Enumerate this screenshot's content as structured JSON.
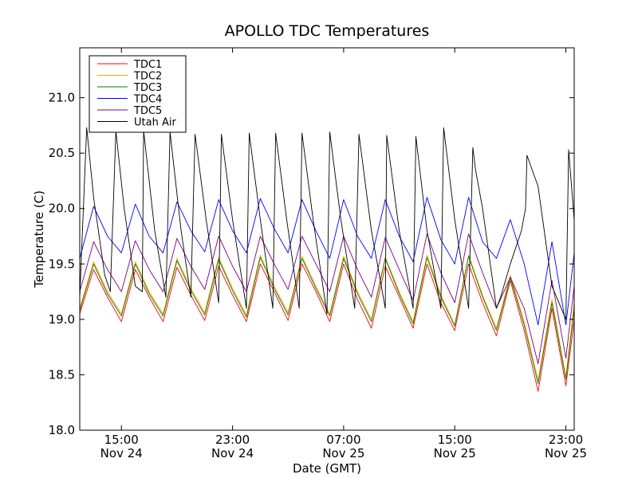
{
  "chart_data": {
    "type": "line",
    "title": "APOLLO TDC Temperatures",
    "xlabel": "Date (GMT)",
    "ylabel": "Temperature (C)",
    "xlim": [
      0,
      35.6
    ],
    "ylim": [
      18.0,
      21.45
    ],
    "yticks": [
      18.0,
      18.5,
      19.0,
      19.5,
      20.0,
      20.5,
      21.0
    ],
    "xticks": [
      {
        "x": 3.0,
        "time": "15:00",
        "date": "Nov 24"
      },
      {
        "x": 11.0,
        "time": "23:00",
        "date": "Nov 24"
      },
      {
        "x": 19.0,
        "time": "07:00",
        "date": "Nov 25"
      },
      {
        "x": 27.0,
        "time": "15:00",
        "date": "Nov 25"
      },
      {
        "x": 35.0,
        "time": "23:00",
        "date": "Nov 25"
      }
    ],
    "legend_position": "top-left",
    "series": [
      {
        "name": "TDC1",
        "color": "#ff0000",
        "points": [
          [
            0,
            19.05
          ],
          [
            1,
            19.45
          ],
          [
            2,
            19.2
          ],
          [
            3,
            18.98
          ],
          [
            4,
            19.45
          ],
          [
            5,
            19.2
          ],
          [
            6,
            18.98
          ],
          [
            7,
            19.47
          ],
          [
            8,
            19.22
          ],
          [
            9,
            18.99
          ],
          [
            10,
            19.48
          ],
          [
            11,
            19.22
          ],
          [
            12,
            18.98
          ],
          [
            13,
            19.5
          ],
          [
            14,
            19.25
          ],
          [
            15,
            18.99
          ],
          [
            16,
            19.5
          ],
          [
            17,
            19.25
          ],
          [
            18,
            18.98
          ],
          [
            19,
            19.5
          ],
          [
            20,
            19.18
          ],
          [
            21,
            18.92
          ],
          [
            22,
            19.48
          ],
          [
            23,
            19.2
          ],
          [
            24,
            18.92
          ],
          [
            25,
            19.5
          ],
          [
            26,
            19.15
          ],
          [
            27,
            18.9
          ],
          [
            28,
            19.5
          ],
          [
            29,
            19.15
          ],
          [
            30,
            18.85
          ],
          [
            31,
            19.35
          ],
          [
            32,
            18.9
          ],
          [
            33,
            18.35
          ],
          [
            34,
            19.1
          ],
          [
            35,
            18.4
          ],
          [
            35.6,
            19.0
          ]
        ]
      },
      {
        "name": "TDC2",
        "color": "#ffa500",
        "points": [
          [
            0,
            19.1
          ],
          [
            1,
            19.52
          ],
          [
            2,
            19.25
          ],
          [
            3,
            19.05
          ],
          [
            4,
            19.52
          ],
          [
            5,
            19.25
          ],
          [
            6,
            19.05
          ],
          [
            7,
            19.55
          ],
          [
            8,
            19.28
          ],
          [
            9,
            19.06
          ],
          [
            10,
            19.56
          ],
          [
            11,
            19.28
          ],
          [
            12,
            19.04
          ],
          [
            13,
            19.58
          ],
          [
            14,
            19.3
          ],
          [
            15,
            19.06
          ],
          [
            16,
            19.57
          ],
          [
            17,
            19.3
          ],
          [
            18,
            19.05
          ],
          [
            19,
            19.57
          ],
          [
            20,
            19.25
          ],
          [
            21,
            19.0
          ],
          [
            22,
            19.56
          ],
          [
            23,
            19.25
          ],
          [
            24,
            18.98
          ],
          [
            25,
            19.58
          ],
          [
            26,
            19.22
          ],
          [
            27,
            18.95
          ],
          [
            28,
            19.58
          ],
          [
            29,
            19.22
          ],
          [
            30,
            18.92
          ],
          [
            31,
            19.4
          ],
          [
            32,
            18.98
          ],
          [
            33,
            18.45
          ],
          [
            34,
            19.18
          ],
          [
            35,
            18.48
          ],
          [
            35.6,
            19.15
          ]
        ]
      },
      {
        "name": "TDC3",
        "color": "#008000",
        "points": [
          [
            0,
            19.08
          ],
          [
            1,
            19.5
          ],
          [
            2,
            19.23
          ],
          [
            3,
            19.03
          ],
          [
            4,
            19.5
          ],
          [
            5,
            19.23
          ],
          [
            6,
            19.03
          ],
          [
            7,
            19.53
          ],
          [
            8,
            19.26
          ],
          [
            9,
            19.04
          ],
          [
            10,
            19.54
          ],
          [
            11,
            19.26
          ],
          [
            12,
            19.02
          ],
          [
            13,
            19.56
          ],
          [
            14,
            19.28
          ],
          [
            15,
            19.04
          ],
          [
            16,
            19.55
          ],
          [
            17,
            19.28
          ],
          [
            18,
            19.03
          ],
          [
            19,
            19.55
          ],
          [
            20,
            19.23
          ],
          [
            21,
            18.98
          ],
          [
            22,
            19.55
          ],
          [
            23,
            19.23
          ],
          [
            24,
            18.96
          ],
          [
            25,
            19.56
          ],
          [
            26,
            19.2
          ],
          [
            27,
            18.94
          ],
          [
            28,
            19.57
          ],
          [
            29,
            19.2
          ],
          [
            30,
            18.9
          ],
          [
            31,
            19.38
          ],
          [
            32,
            18.95
          ],
          [
            33,
            18.42
          ],
          [
            34,
            19.15
          ],
          [
            35,
            18.46
          ],
          [
            35.6,
            19.1
          ]
        ]
      },
      {
        "name": "TDC4",
        "color": "#0000ff",
        "points": [
          [
            0,
            19.55
          ],
          [
            1,
            20.02
          ],
          [
            2,
            19.75
          ],
          [
            3,
            19.6
          ],
          [
            4,
            20.04
          ],
          [
            5,
            19.75
          ],
          [
            6,
            19.6
          ],
          [
            7,
            20.06
          ],
          [
            8,
            19.8
          ],
          [
            9,
            19.61
          ],
          [
            10,
            20.08
          ],
          [
            11,
            19.8
          ],
          [
            12,
            19.6
          ],
          [
            13,
            20.09
          ],
          [
            14,
            19.82
          ],
          [
            15,
            19.6
          ],
          [
            16,
            20.08
          ],
          [
            17,
            19.8
          ],
          [
            18,
            19.55
          ],
          [
            19,
            20.08
          ],
          [
            20,
            19.75
          ],
          [
            21,
            19.55
          ],
          [
            22,
            20.08
          ],
          [
            23,
            19.75
          ],
          [
            24,
            19.52
          ],
          [
            25,
            20.1
          ],
          [
            26,
            19.72
          ],
          [
            27,
            19.5
          ],
          [
            28,
            20.1
          ],
          [
            29,
            19.7
          ],
          [
            30,
            19.55
          ],
          [
            31,
            19.9
          ],
          [
            32,
            19.5
          ],
          [
            33,
            18.95
          ],
          [
            34,
            19.7
          ],
          [
            35,
            18.95
          ],
          [
            35.6,
            19.6
          ]
        ]
      },
      {
        "name": "TDC5",
        "color": "#800080",
        "points": [
          [
            0,
            19.25
          ],
          [
            1,
            19.7
          ],
          [
            2,
            19.45
          ],
          [
            3,
            19.25
          ],
          [
            4,
            19.71
          ],
          [
            5,
            19.45
          ],
          [
            6,
            19.25
          ],
          [
            7,
            19.73
          ],
          [
            8,
            19.48
          ],
          [
            9,
            19.27
          ],
          [
            10,
            19.75
          ],
          [
            11,
            19.48
          ],
          [
            12,
            19.25
          ],
          [
            13,
            19.75
          ],
          [
            14,
            19.5
          ],
          [
            15,
            19.27
          ],
          [
            16,
            19.75
          ],
          [
            17,
            19.5
          ],
          [
            18,
            19.25
          ],
          [
            19,
            19.75
          ],
          [
            20,
            19.45
          ],
          [
            21,
            19.2
          ],
          [
            22,
            19.74
          ],
          [
            23,
            19.45
          ],
          [
            24,
            19.17
          ],
          [
            25,
            19.77
          ],
          [
            26,
            19.42
          ],
          [
            27,
            19.15
          ],
          [
            28,
            19.77
          ],
          [
            29,
            19.42
          ],
          [
            30,
            19.1
          ],
          [
            31,
            19.38
          ],
          [
            32,
            19.1
          ],
          [
            33,
            18.6
          ],
          [
            34,
            19.35
          ],
          [
            35,
            18.65
          ],
          [
            35.6,
            19.3
          ]
        ]
      },
      {
        "name": "Utah Air",
        "color": "#000000",
        "points": [
          [
            0,
            19.2
          ],
          [
            0.5,
            20.73
          ],
          [
            1,
            20.1
          ],
          [
            1.8,
            19.4
          ],
          [
            2.2,
            19.25
          ],
          [
            2.6,
            20.7
          ],
          [
            3.2,
            20.0
          ],
          [
            4,
            19.3
          ],
          [
            4.5,
            19.25
          ],
          [
            4.6,
            20.7
          ],
          [
            5.4,
            19.8
          ],
          [
            6.2,
            19.2
          ],
          [
            6.5,
            20.69
          ],
          [
            7.3,
            19.8
          ],
          [
            8,
            19.2
          ],
          [
            8.3,
            20.67
          ],
          [
            9.1,
            19.9
          ],
          [
            10,
            19.15
          ],
          [
            10.2,
            20.67
          ],
          [
            11.0,
            19.9
          ],
          [
            12,
            19.1
          ],
          [
            12.2,
            20.68
          ],
          [
            13.0,
            19.9
          ],
          [
            13.9,
            19.1
          ],
          [
            14.1,
            20.68
          ],
          [
            14.9,
            19.9
          ],
          [
            15.8,
            19.1
          ],
          [
            16.0,
            20.68
          ],
          [
            16.8,
            19.9
          ],
          [
            17.8,
            19.05
          ],
          [
            18.0,
            20.69
          ],
          [
            18.8,
            19.9
          ],
          [
            19.8,
            19.1
          ],
          [
            20.1,
            20.67
          ],
          [
            21.0,
            19.8
          ],
          [
            22,
            19.1
          ],
          [
            22.1,
            20.66
          ],
          [
            23.0,
            19.8
          ],
          [
            24,
            19.1
          ],
          [
            24.2,
            20.65
          ],
          [
            25.0,
            19.8
          ],
          [
            26,
            19.1
          ],
          [
            26.2,
            20.73
          ],
          [
            27.0,
            19.9
          ],
          [
            28,
            19.1
          ],
          [
            28.3,
            20.55
          ],
          [
            28.5,
            20.35
          ],
          [
            29,
            20.0
          ],
          [
            30,
            19.1
          ],
          [
            30.3,
            19.2
          ],
          [
            31.0,
            19.5
          ],
          [
            31.8,
            19.8
          ],
          [
            32.1,
            20.0
          ],
          [
            32.2,
            20.48
          ],
          [
            33.0,
            20.2
          ],
          [
            34.0,
            19.3
          ],
          [
            35,
            19.0
          ],
          [
            35.2,
            20.53
          ],
          [
            35.6,
            19.9
          ]
        ]
      }
    ]
  }
}
